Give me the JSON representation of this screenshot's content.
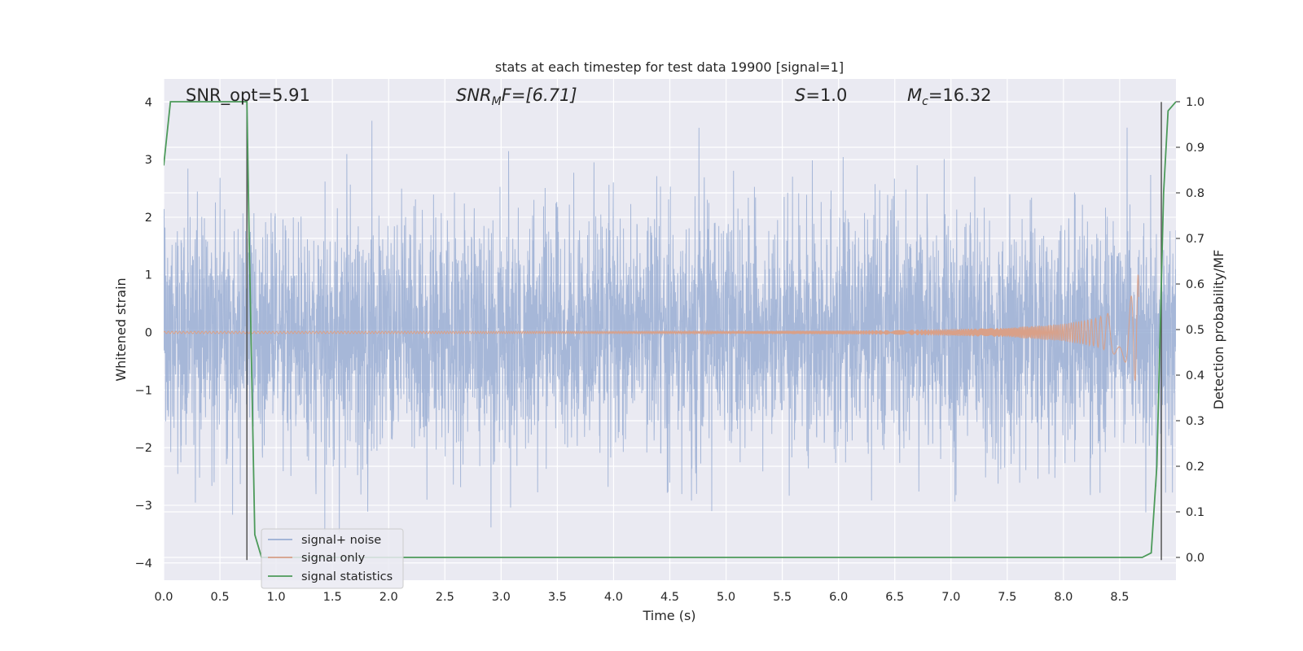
{
  "chart_data": {
    "type": "line",
    "title": "stats at each timestep for test data 19900 [signal=1]",
    "xlabel": "Time (s)",
    "ylabel": "Whitened strain",
    "y2label": "Detection probability/MF",
    "xlim": [
      0.0,
      9.0
    ],
    "ylim": [
      -4.3,
      4.4
    ],
    "y2lim": [
      -0.05,
      1.05
    ],
    "x_ticks": [
      "0.0",
      "0.5",
      "1.0",
      "1.5",
      "2.0",
      "2.5",
      "3.0",
      "3.5",
      "4.0",
      "4.5",
      "5.0",
      "5.5",
      "6.0",
      "6.5",
      "7.0",
      "7.5",
      "8.0",
      "8.5"
    ],
    "y_ticks": [
      "4",
      "3",
      "2",
      "1",
      "0",
      "−1",
      "−2",
      "−3",
      "−4"
    ],
    "y2_ticks": [
      "1.0",
      "0.9",
      "0.8",
      "0.7",
      "0.6",
      "0.5",
      "0.4",
      "0.3",
      "0.2",
      "0.1",
      "0.0"
    ],
    "grid": true,
    "legend_position": "lower-left",
    "annotations": {
      "snr_opt": "SNR_opt=5.91",
      "snr_mf_main": "SNR",
      "snr_mf_sub": "M",
      "snr_mf_rest": "F=[6.71]",
      "s_italic": "S",
      "s_rest": "=1.0",
      "mc_main": "M",
      "mc_sub": "c",
      "mc_rest": "=16.32"
    },
    "series": [
      {
        "name": "signal+ noise",
        "color": "#9aaed4",
        "description_values": {
          "approx_range": [
            -3.9,
            4.0
          ]
        }
      },
      {
        "name": "signal only",
        "color": "#d9a088",
        "envelope": {
          "x": [
            0.0,
            5.0,
            6.5,
            7.5,
            8.0,
            8.3,
            8.5,
            8.6,
            8.67
          ],
          "amp": [
            0.02,
            0.02,
            0.04,
            0.08,
            0.15,
            0.25,
            0.42,
            0.62,
            1.05
          ]
        }
      },
      {
        "name": "signal statistics",
        "color": "#4c9a5a",
        "axis": "right",
        "x": [
          0.0,
          0.06,
          0.12,
          0.7,
          0.74,
          0.76,
          0.81,
          0.87,
          0.9,
          8.7,
          8.78,
          8.83,
          8.86,
          8.89,
          8.93,
          9.0
        ],
        "y": [
          0.86,
          1.0,
          1.0,
          1.0,
          1.0,
          0.7,
          0.05,
          0.0,
          0.0,
          0.0,
          0.01,
          0.2,
          0.5,
          0.8,
          0.98,
          1.0
        ]
      }
    ],
    "vertical_lines": [
      0.74,
      8.87
    ]
  }
}
